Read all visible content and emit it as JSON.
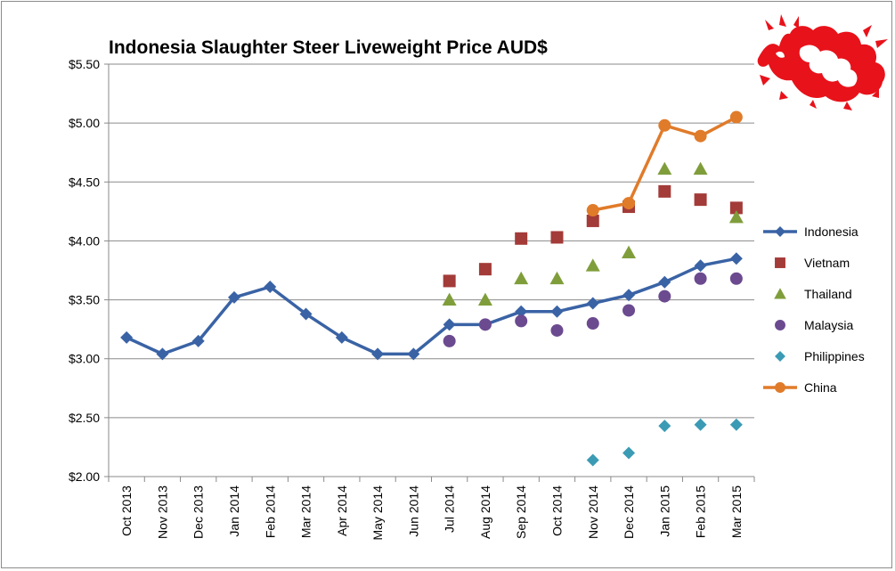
{
  "chart_data": {
    "type": "line",
    "title": "Indonesia Slaughter Steer Liveweight Price AUD$",
    "xlabel": "",
    "ylabel": "",
    "categories": [
      "Oct 2013",
      "Nov 2013",
      "Dec 2013",
      "Jan 2014",
      "Feb 2014",
      "Mar 2014",
      "Apr 2014",
      "May 2014",
      "Jun 2014",
      "Jul 2014",
      "Aug 2014",
      "Sep 2014",
      "Oct 2014",
      "Nov 2014",
      "Dec 2014",
      "Jan 2015",
      "Feb 2015",
      "Mar 2015"
    ],
    "ylim": [
      2.0,
      5.5
    ],
    "yticks": [
      "$2.00",
      "$2.50",
      "$3.00",
      "$3.50",
      "$4.00",
      "$4.50",
      "$5.00",
      "$5.50"
    ],
    "grid": true,
    "legend_position": "right",
    "series": [
      {
        "name": "Indonesia",
        "style": "line",
        "marker": "diamond",
        "color": "#3a63a5",
        "values": [
          3.18,
          3.04,
          3.15,
          3.52,
          3.61,
          3.38,
          3.18,
          3.04,
          3.04,
          3.29,
          3.29,
          3.4,
          3.4,
          3.47,
          3.54,
          3.65,
          3.79,
          3.85
        ]
      },
      {
        "name": "Vietnam",
        "style": "markers",
        "marker": "square",
        "color": "#a33b38",
        "values": [
          null,
          null,
          null,
          null,
          null,
          null,
          null,
          null,
          null,
          3.66,
          3.76,
          4.02,
          4.03,
          4.17,
          4.29,
          4.42,
          4.35,
          4.28
        ]
      },
      {
        "name": "Thailand",
        "style": "markers",
        "marker": "triangle",
        "color": "#7f9e3b",
        "values": [
          null,
          null,
          null,
          null,
          null,
          null,
          null,
          null,
          null,
          3.5,
          3.5,
          3.68,
          3.68,
          3.79,
          3.9,
          4.61,
          4.61,
          4.2
        ]
      },
      {
        "name": "Malaysia",
        "style": "markers",
        "marker": "circle",
        "color": "#6b4a8f",
        "values": [
          null,
          null,
          null,
          null,
          null,
          null,
          null,
          null,
          null,
          3.15,
          3.29,
          3.32,
          3.24,
          3.3,
          3.41,
          3.53,
          3.68,
          3.68
        ]
      },
      {
        "name": "Philippines",
        "style": "markers",
        "marker": "diamond",
        "color": "#3b9bb5",
        "values": [
          null,
          null,
          null,
          null,
          null,
          null,
          null,
          null,
          null,
          null,
          null,
          null,
          null,
          2.14,
          2.2,
          2.43,
          2.44,
          2.44
        ]
      },
      {
        "name": "China",
        "style": "line",
        "marker": "circle",
        "color": "#e07b2a",
        "values": [
          null,
          null,
          null,
          null,
          null,
          null,
          null,
          null,
          null,
          null,
          null,
          null,
          null,
          4.26,
          4.32,
          4.98,
          4.89,
          5.05
        ]
      }
    ]
  },
  "decoration": {
    "icon": "red-dragon-icon",
    "color": "#e8121a"
  }
}
